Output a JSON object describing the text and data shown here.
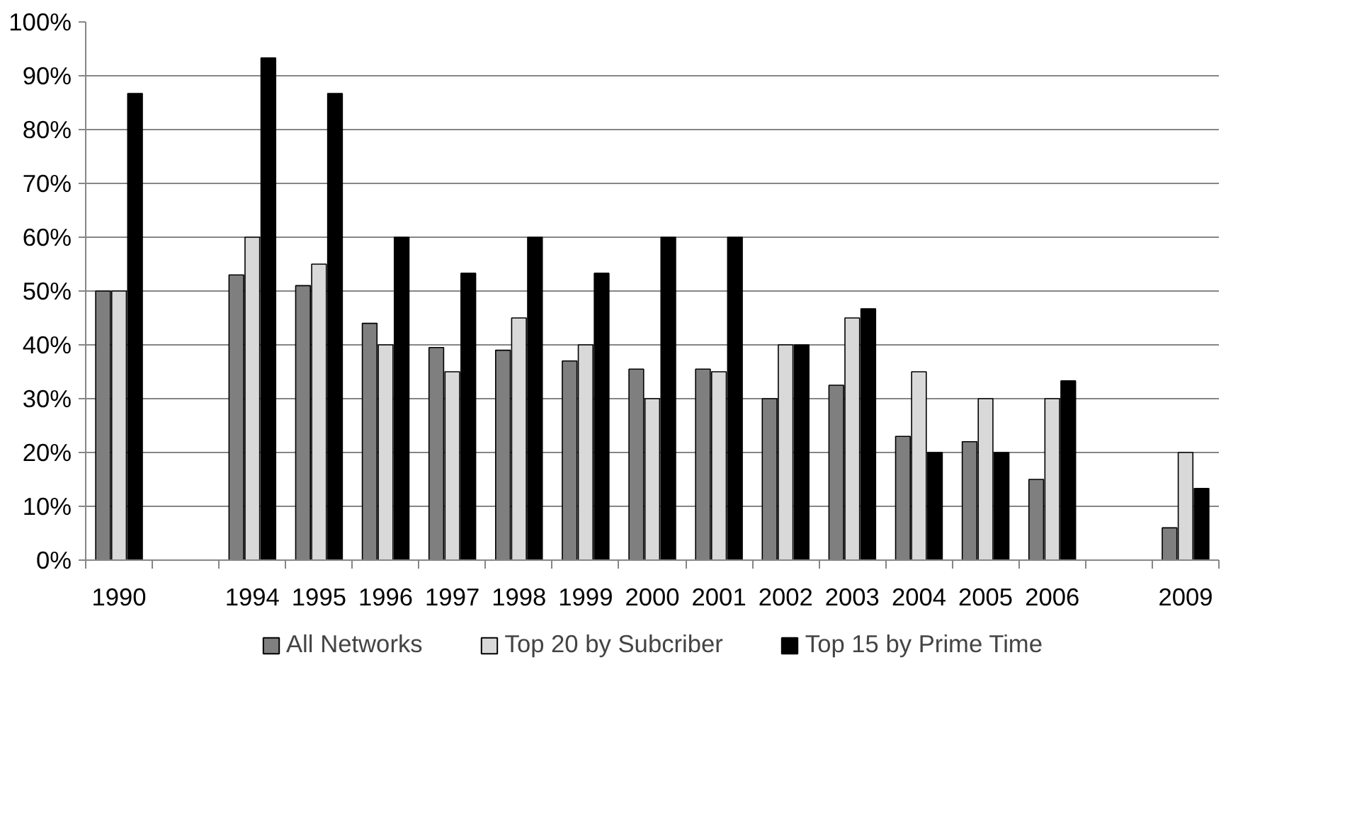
{
  "chart_data": {
    "type": "bar",
    "categories": [
      "1990",
      null,
      "1994",
      "1995",
      "1996",
      "1997",
      "1998",
      "1999",
      "2000",
      "2001",
      "2002",
      "2003",
      "2004",
      "2005",
      "2006",
      null,
      "2009"
    ],
    "series": [
      {
        "name": "All Networks",
        "color": "#7f7f7f",
        "values": [
          50,
          null,
          53,
          51,
          44,
          39.5,
          39,
          37,
          35.5,
          35.5,
          30,
          32.5,
          23,
          22,
          15,
          null,
          6
        ]
      },
      {
        "name": "Top 20 by Subcriber",
        "color": "#d9d9d9",
        "values": [
          50,
          null,
          60,
          55,
          40,
          35,
          45,
          40,
          30,
          35,
          40,
          45,
          35,
          30,
          30,
          null,
          20
        ]
      },
      {
        "name": "Top 15 by Prime Time",
        "color": "#000000",
        "values": [
          86.7,
          null,
          93.3,
          86.7,
          60,
          53.3,
          60,
          53.3,
          60,
          60,
          40,
          46.7,
          20,
          20,
          33.3,
          null,
          13.3
        ]
      }
    ],
    "ylim": [
      0,
      100
    ],
    "yticks": [
      {
        "value": 0,
        "label": "0%"
      },
      {
        "value": 10,
        "label": "10%"
      },
      {
        "value": 20,
        "label": "20%"
      },
      {
        "value": 30,
        "label": "30%"
      },
      {
        "value": 40,
        "label": "40%"
      },
      {
        "value": 50,
        "label": "50%"
      },
      {
        "value": 60,
        "label": "60%"
      },
      {
        "value": 70,
        "label": "70%"
      },
      {
        "value": 80,
        "label": "80%"
      },
      {
        "value": 90,
        "label": "90%"
      },
      {
        "value": 100,
        "label": "100%"
      }
    ],
    "grid": "y",
    "legend": "bottom"
  }
}
